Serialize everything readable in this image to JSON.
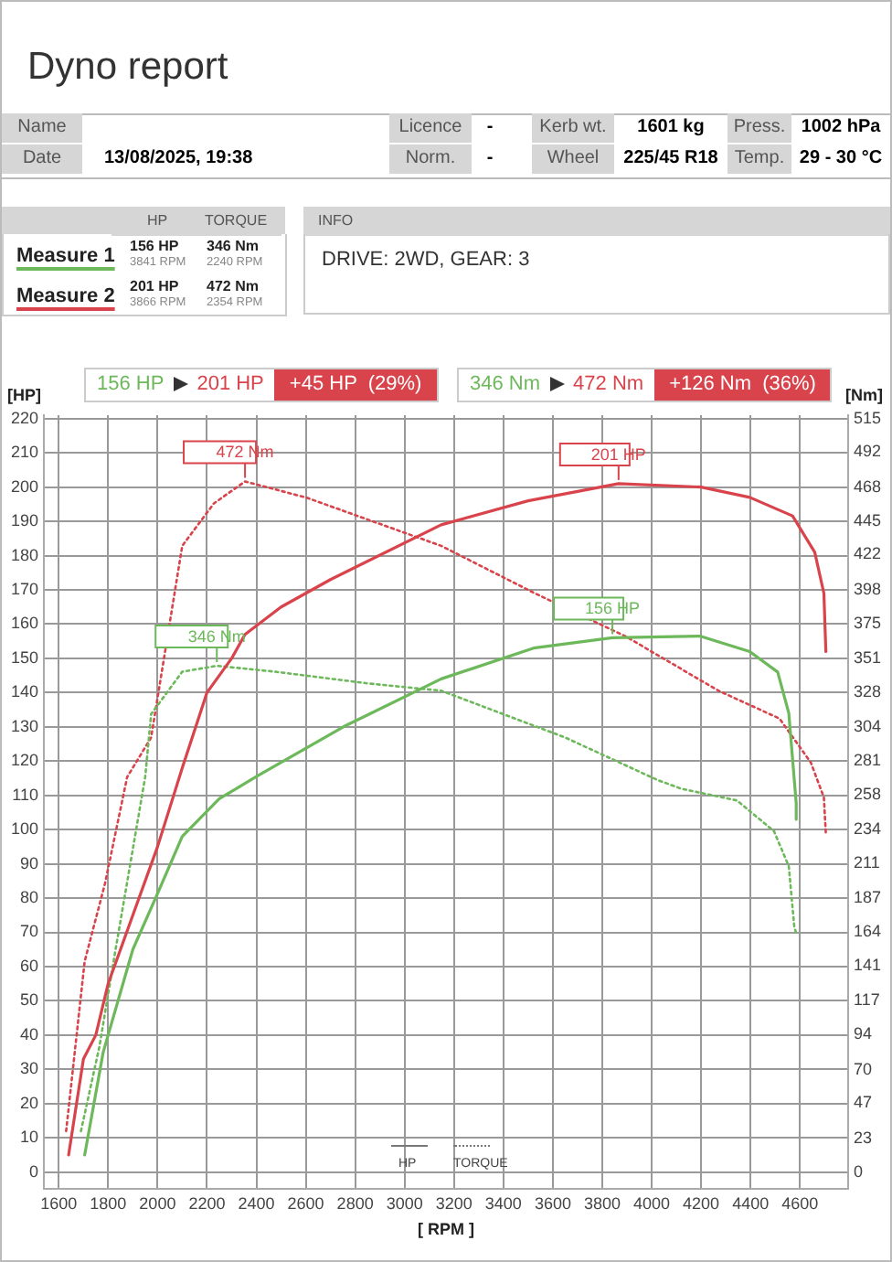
{
  "chart_data": {
    "type": "line",
    "title": "Dyno report",
    "xlabel": "[ RPM ]",
    "ylabel": "[HP]",
    "y2label": "[Nm]",
    "xlim": [
      1540,
      4795
    ],
    "xticks": [
      1600,
      1800,
      2000,
      2200,
      2400,
      2600,
      2800,
      3000,
      3200,
      3400,
      3600,
      3800,
      4000,
      4200,
      4400,
      4600
    ],
    "ylim": [
      -5,
      221
    ],
    "yticks": [
      0,
      10,
      20,
      30,
      40,
      50,
      60,
      70,
      80,
      90,
      100,
      110,
      120,
      130,
      140,
      150,
      160,
      170,
      180,
      190,
      200,
      210,
      220
    ],
    "y2lim": [
      -11.7,
      517.3
    ],
    "y2ticks": [
      0,
      23,
      47,
      70,
      94,
      117,
      141,
      164,
      187,
      211,
      234,
      258,
      281,
      304,
      328,
      351,
      375,
      398,
      422,
      445,
      468,
      492,
      515
    ],
    "grid": true,
    "legend": false,
    "marker": "none",
    "series": [
      {
        "color": "#6cb85a",
        "line_style": "solid",
        "x": [
          1705,
          1780,
          1900,
          2004,
          2100,
          2250,
          2400,
          2752,
          3148,
          3522,
          3841,
          4195,
          4397,
          4510,
          4555,
          4585,
          4585
        ],
        "values": [
          5,
          35,
          65,
          82,
          98,
          109,
          115.5,
          130,
          144,
          153,
          156,
          156.5,
          152,
          146,
          134,
          107.6,
          103
        ],
        "value_labels": [
          null,
          null,
          null,
          null,
          null,
          null,
          null,
          null,
          null,
          null,
          "156 HP",
          null,
          null,
          null,
          null,
          null,
          null
        ]
      },
      {
        "color": "#d9434b",
        "line_style": "solid",
        "x": [
          1640,
          1700,
          1750,
          1800,
          1900,
          2000,
          2100,
          2200,
          2300,
          2354,
          2500,
          2700,
          3148,
          3500,
          3866,
          4200,
          4397,
          4570,
          4660,
          4697,
          4705
        ],
        "values": [
          5,
          33,
          40,
          55,
          75,
          95,
          118,
          140,
          150,
          157,
          165,
          173,
          189,
          196,
          201,
          200,
          197,
          191.6,
          181,
          169,
          152
        ],
        "value_labels": [
          null,
          null,
          null,
          null,
          null,
          null,
          null,
          null,
          null,
          null,
          null,
          null,
          null,
          null,
          "201 HP",
          null,
          null,
          null,
          null,
          null,
          null
        ]
      },
      {
        "color": "#6cb85a",
        "line_style": "dotted",
        "axis": "y2",
        "x": [
          1690,
          1765,
          1825,
          1950,
          1974,
          2100,
          2240,
          2475,
          2850,
          3148,
          3650,
          4023,
          4120,
          4345,
          4495,
          4555,
          4577,
          4585
        ],
        "values": [
          28,
          86,
          147,
          270,
          313,
          342,
          346,
          342,
          334,
          329,
          297,
          268,
          262,
          254,
          233,
          209,
          168,
          163
        ],
        "value_labels": [
          null,
          null,
          null,
          null,
          null,
          null,
          "346 Nm",
          null,
          null,
          null,
          null,
          null,
          null,
          null,
          null,
          null,
          null,
          null
        ]
      },
      {
        "color": "#d9434b",
        "line_style": "dotted",
        "axis": "y2",
        "x": [
          1630,
          1705,
          1787,
          1877,
          1974,
          2100,
          2228,
          2354,
          2602,
          3148,
          3522,
          3896,
          4270,
          4517,
          4644,
          4697,
          4705
        ],
        "values": [
          28,
          144,
          197,
          270,
          297,
          428,
          457,
          472,
          461,
          428,
          396,
          366,
          329,
          310,
          280,
          256,
          231
        ],
        "value_labels": [
          null,
          null,
          null,
          null,
          null,
          null,
          null,
          "472 Nm",
          null,
          null,
          null,
          null,
          null,
          null,
          null,
          null,
          null
        ]
      }
    ],
    "annotations": [
      "Name",
      "Date",
      "13/08/2025, 19:38",
      "Licence",
      "-",
      "Norm.",
      "-",
      "Kerb wt.",
      "1601 kg",
      "Wheel",
      "225/45 R18",
      "Press.",
      "1002 hPa",
      "Temp.",
      "29 - 30 °C",
      "HP",
      "TORQUE",
      "Measure 1",
      "156 HP",
      "3841 RPM",
      "346 Nm",
      "2240 RPM",
      "Measure 2",
      "201 HP",
      "3866 RPM",
      "472 Nm",
      "2354 RPM",
      "INFO",
      "DRIVE: 2WD,  GEAR: 3",
      "156 HP",
      "201 HP",
      "+45 HP  (29%)",
      "346 Nm",
      "472 Nm",
      "+126 Nm  (36%)",
      "HP",
      "TORQUE"
    ]
  }
}
